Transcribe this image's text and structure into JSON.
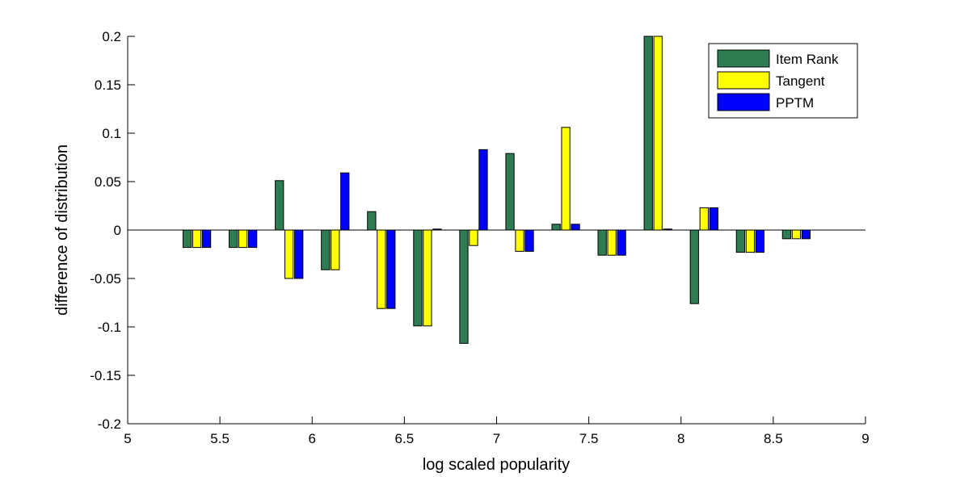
{
  "chart_data": {
    "type": "bar",
    "title": "",
    "xlabel": "log scaled popularity",
    "ylabel": "difference of distribution",
    "xlim": [
      5,
      9
    ],
    "ylim": [
      -0.2,
      0.2
    ],
    "xticks": [
      "5",
      "5.5",
      "6",
      "6.5",
      "7",
      "7.5",
      "8",
      "8.5",
      "9"
    ],
    "yticks": [
      "-0.2",
      "-0.15",
      "-0.1",
      "-0.05",
      "0",
      "0.05",
      "0.1",
      "0.15",
      "0.2"
    ],
    "x": [
      5.375,
      5.625,
      5.875,
      6.125,
      6.375,
      6.625,
      6.875,
      7.125,
      7.375,
      7.625,
      7.875,
      8.125,
      8.375,
      8.625
    ],
    "legend_position": "top-right",
    "grid": false,
    "series": [
      {
        "name": "Item Rank",
        "color": "#2e7d52",
        "values": [
          -0.018,
          -0.018,
          0.051,
          -0.041,
          0.019,
          -0.099,
          -0.117,
          0.079,
          0.006,
          -0.026,
          0.2,
          -0.076,
          -0.023,
          -0.009
        ]
      },
      {
        "name": "Tangent",
        "color": "#ffff00",
        "values": [
          -0.018,
          -0.018,
          -0.05,
          -0.041,
          -0.081,
          -0.099,
          -0.016,
          -0.022,
          0.106,
          -0.026,
          0.2,
          0.023,
          -0.023,
          -0.009
        ]
      },
      {
        "name": "PPTM",
        "color": "#0000ff",
        "values": [
          -0.018,
          -0.018,
          -0.05,
          0.059,
          -0.081,
          0.001,
          0.083,
          -0.022,
          0.006,
          -0.026,
          0.001,
          0.023,
          -0.023,
          -0.009
        ]
      }
    ]
  }
}
